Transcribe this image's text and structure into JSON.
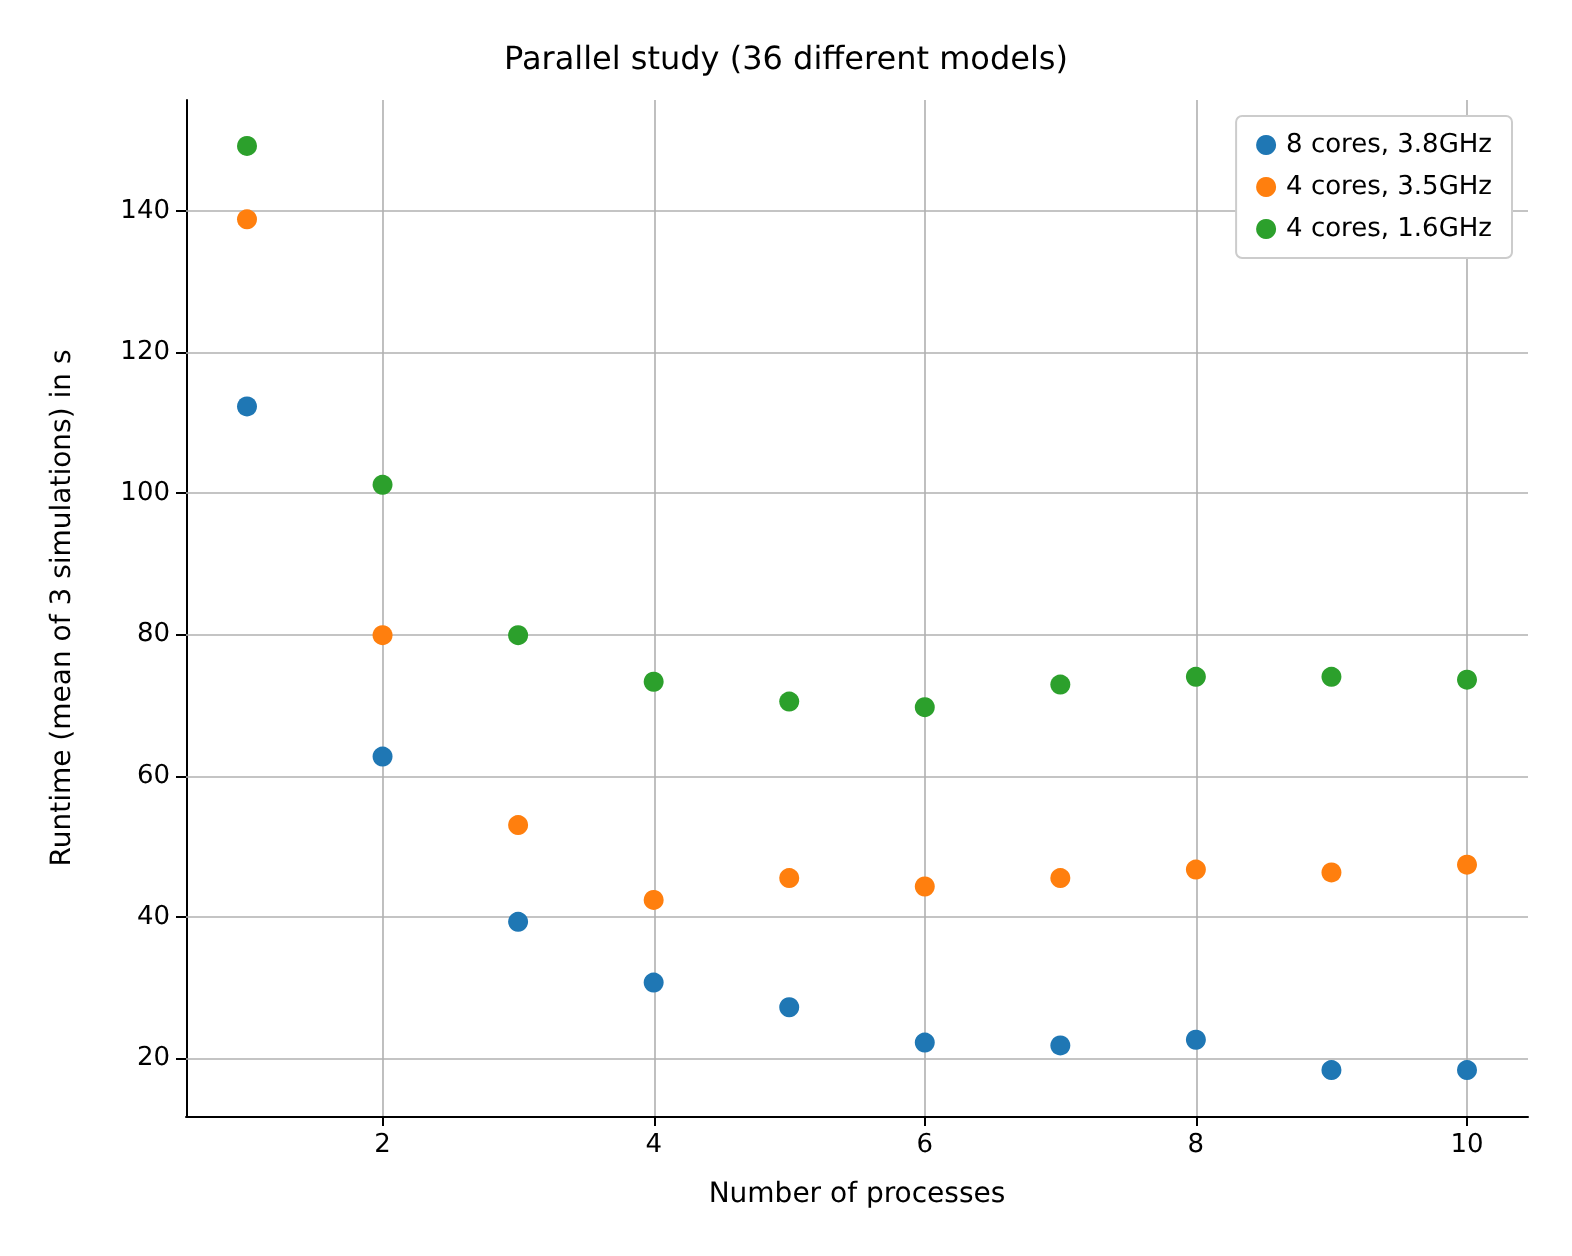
{
  "chart_data": {
    "type": "scatter",
    "title": "Parallel study (36 different models)",
    "xlabel": "Number of processes",
    "ylabel": "Runtime (mean of 3 simulations) in s",
    "x": [
      1,
      2,
      3,
      4,
      5,
      6,
      7,
      8,
      9,
      10
    ],
    "series": [
      {
        "name": "8 cores, 3.8GHz",
        "color": "#1f77b4",
        "values": [
          112.3,
          62.7,
          39.3,
          30.7,
          27.2,
          22.2,
          21.8,
          22.6,
          18.3,
          18.3
        ]
      },
      {
        "name": "4 cores, 3.5GHz",
        "color": "#ff7f0e",
        "values": [
          138.8,
          79.9,
          53,
          42.4,
          45.5,
          44.3,
          45.5,
          46.7,
          46.3,
          47.4
        ]
      },
      {
        "name": "4 cores, 1.6GHz",
        "color": "#2ca02c",
        "values": [
          149.2,
          101.2,
          79.9,
          73.3,
          70.5,
          69.7,
          72.9,
          74,
          74,
          73.6
        ]
      }
    ],
    "xlim": [
      0.55,
      10.45
    ],
    "xticks": [
      2,
      4,
      6,
      8,
      10
    ],
    "ylim": [
      11.8,
      155.7
    ],
    "yticks": [
      20,
      40,
      60,
      80,
      100,
      120,
      140
    ],
    "grid": true,
    "legend": "top right",
    "marker": "circle"
  }
}
